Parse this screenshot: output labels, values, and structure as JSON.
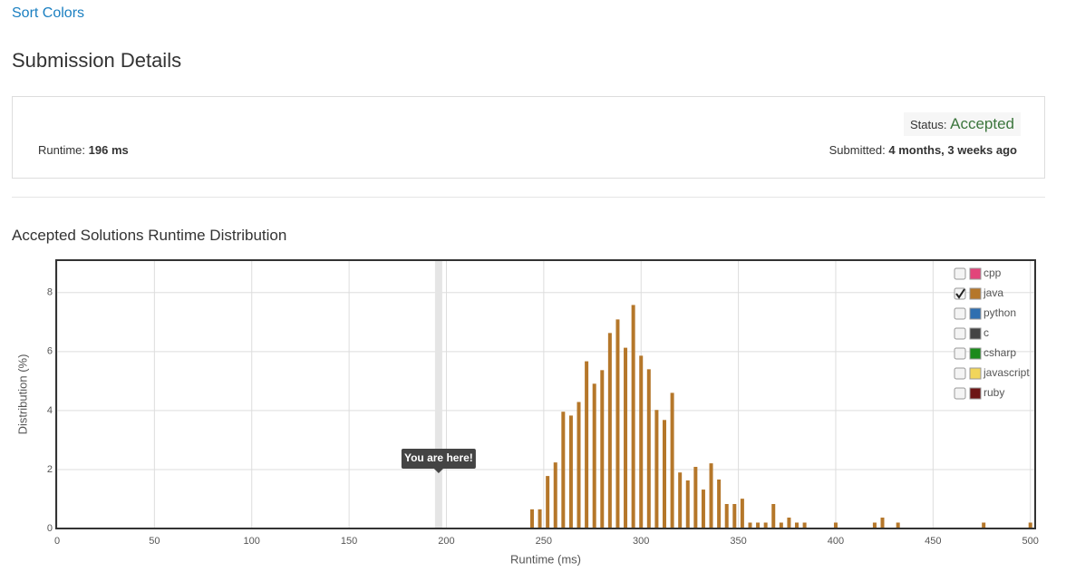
{
  "problem": "Sort Colors",
  "heading": "Submission Details",
  "runtime": {
    "label": "Runtime:",
    "value": "196 ms"
  },
  "status": {
    "label": "Status:",
    "value": "Accepted"
  },
  "submitted": {
    "label": "Submitted:",
    "value": "4 months, 3 weeks ago"
  },
  "chart_data": {
    "type": "bar",
    "title": "Accepted Solutions Runtime Distribution",
    "x_label": "Runtime (ms)",
    "y_label": "Distribution (%)",
    "x": [
      244,
      248,
      252,
      256,
      260,
      264,
      268,
      272,
      276,
      280,
      284,
      288,
      292,
      296,
      300,
      304,
      308,
      312,
      316,
      320,
      324,
      328,
      332,
      336,
      340,
      344,
      348,
      352,
      356,
      360,
      364,
      368,
      372,
      376,
      380,
      384,
      400,
      420,
      424,
      432,
      476,
      500
    ],
    "series": [
      {
        "name": "cpp",
        "color": "#e2457a",
        "checked": false
      },
      {
        "name": "java",
        "color": "#b5772a",
        "checked": true,
        "values": [
          0.65,
          0.65,
          1.78,
          2.24,
          3.96,
          3.83,
          4.29,
          5.67,
          4.91,
          5.37,
          6.63,
          7.09,
          6.13,
          7.58,
          5.86,
          5.4,
          4.02,
          3.68,
          4.6,
          1.9,
          1.63,
          2.09,
          1.32,
          2.21,
          1.66,
          0.83,
          0.83,
          1.01,
          0.2,
          0.2,
          0.2,
          0.83,
          0.2,
          0.37,
          0.2,
          0.2,
          0.2,
          0.2,
          0.37,
          0.2,
          0.2,
          0.2
        ]
      },
      {
        "name": "python",
        "color": "#2f6fb0",
        "checked": false
      },
      {
        "name": "c",
        "color": "#444444",
        "checked": false
      },
      {
        "name": "csharp",
        "color": "#1c8a1c",
        "checked": false
      },
      {
        "name": "javascript",
        "color": "#f1d55b",
        "checked": false
      },
      {
        "name": "ruby",
        "color": "#6d1515",
        "checked": false
      }
    ],
    "annotation": {
      "text": "You are here!",
      "x": 196
    },
    "xlim": [
      0,
      502
    ],
    "xticks": [
      0,
      50,
      100,
      150,
      200,
      250,
      300,
      350,
      400,
      450,
      500
    ],
    "ylim": [
      0,
      9.1
    ],
    "yticks": [
      0,
      2,
      4,
      6,
      8
    ],
    "grid": true,
    "legend": "top-right"
  }
}
